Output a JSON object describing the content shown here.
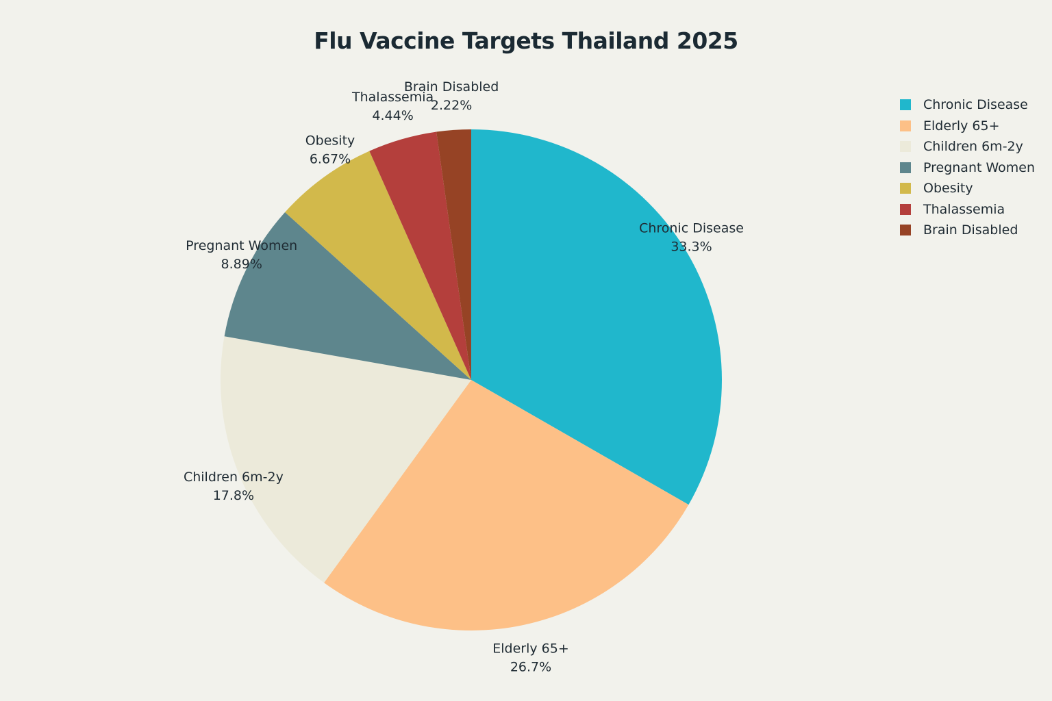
{
  "chart_data": {
    "type": "pie",
    "title": "Flu Vaccine Targets Thailand 2025",
    "legend_position": "top-right",
    "slices": [
      {
        "label": "Chronic Disease",
        "value": 33.3,
        "display": "33.3%",
        "color": "#20b7cc"
      },
      {
        "label": "Elderly 65+",
        "value": 26.7,
        "display": "26.7%",
        "color": "#fdc087"
      },
      {
        "label": "Children 6m-2y",
        "value": 17.8,
        "display": "17.8%",
        "color": "#eceada"
      },
      {
        "label": "Pregnant Women",
        "value": 8.89,
        "display": "8.89%",
        "color": "#5e868d"
      },
      {
        "label": "Obesity",
        "value": 6.67,
        "display": "6.67%",
        "color": "#d2b94b"
      },
      {
        "label": "Thalassemia",
        "value": 4.44,
        "display": "4.44%",
        "color": "#b43f3c"
      },
      {
        "label": "Brain Disabled",
        "value": 2.22,
        "display": "2.22%",
        "color": "#964325"
      }
    ],
    "legend_order": [
      "Chronic Disease",
      "Elderly 65+",
      "Children 6m-2y",
      "Pregnant Women",
      "Obesity",
      "Thalassemia",
      "Brain Disabled"
    ]
  }
}
